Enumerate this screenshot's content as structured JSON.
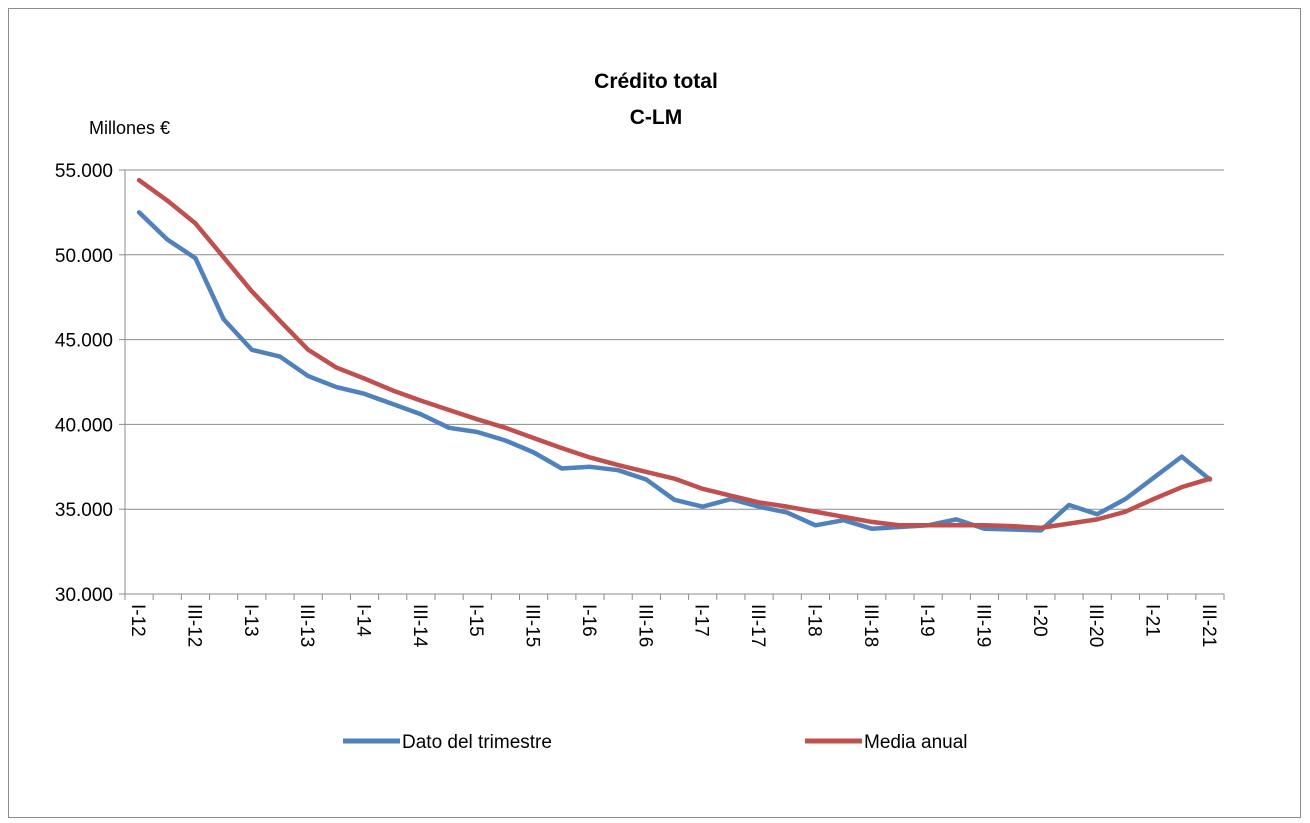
{
  "chart_data": {
    "type": "line",
    "title_line1": "Crédito total",
    "title_line2": "C-LM",
    "ylabel": "Millones €",
    "ylim": [
      30000,
      55000
    ],
    "y_ticks": [
      "30.000",
      "35.000",
      "40.000",
      "45.000",
      "50.000",
      "55.000"
    ],
    "y_tick_values": [
      30000,
      35000,
      40000,
      45000,
      50000,
      55000
    ],
    "grid": true,
    "legend_position": "bottom",
    "categories": [
      "I-12",
      "II-12",
      "III-12",
      "IV-12",
      "I-13",
      "II-13",
      "III-13",
      "IV-13",
      "I-14",
      "II-14",
      "III-14",
      "IV-14",
      "I-15",
      "II-15",
      "III-15",
      "IV-15",
      "I-16",
      "II-16",
      "III-16",
      "IV-16",
      "I-17",
      "II-17",
      "III-17",
      "IV-17",
      "I-18",
      "II-18",
      "III-18",
      "IV-18",
      "I-19",
      "II-19",
      "III-19",
      "IV-19",
      "I-20",
      "II-20",
      "III-20",
      "IV-20",
      "I-21",
      "II-21",
      "III-21"
    ],
    "x_tick_labels": [
      "I-12",
      "III-12",
      "I-13",
      "III-13",
      "I-14",
      "III-14",
      "I-15",
      "III-15",
      "I-16",
      "III-16",
      "I-17",
      "III-17",
      "I-18",
      "III-18",
      "I-19",
      "III-19",
      "I-20",
      "III-20",
      "I-21",
      "III-21"
    ],
    "series": [
      {
        "name": "Dato del trimestre",
        "color": "#4f81bd",
        "values": [
          52500,
          50900,
          49800,
          46200,
          44400,
          44000,
          42850,
          42200,
          41800,
          41200,
          40600,
          39800,
          39550,
          39050,
          38350,
          37400,
          37500,
          37300,
          36750,
          35550,
          35150,
          35600,
          35150,
          34800,
          34050,
          34350,
          33850,
          33950,
          34050,
          34400,
          33850,
          33800,
          33750,
          35250,
          34700,
          35600,
          36850,
          38100,
          36750
        ]
      },
      {
        "name": "Media anual",
        "color": "#c0504d",
        "values": [
          54400,
          53200,
          51850,
          49850,
          47850,
          46100,
          44400,
          43350,
          42700,
          42000,
          41400,
          40850,
          40300,
          39800,
          39200,
          38600,
          38050,
          37600,
          37200,
          36800,
          36200,
          35800,
          35400,
          35150,
          34850,
          34550,
          34250,
          34050,
          34050,
          34050,
          34050,
          34000,
          33900,
          34150,
          34400,
          34850,
          35600,
          36300,
          36800
        ]
      }
    ]
  }
}
